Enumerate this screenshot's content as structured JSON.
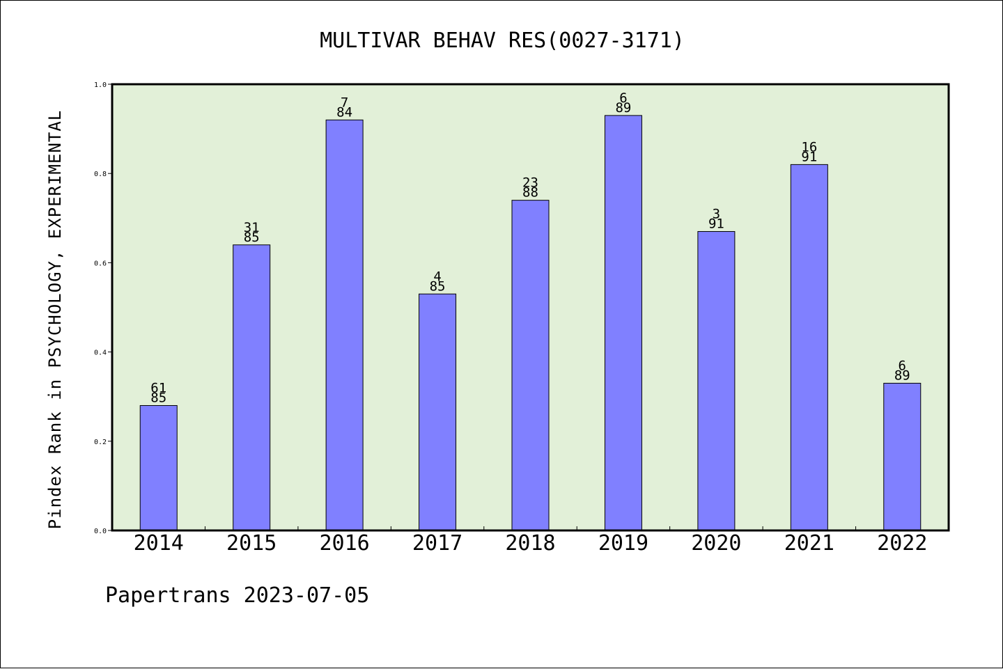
{
  "chart_data": {
    "type": "bar",
    "title": "MULTIVAR BEHAV RES(0027-3171)",
    "xlabel": "",
    "ylabel": "Pindex Rank in PSYCHOLOGY, EXPERIMENTAL",
    "ylim": [
      0,
      1.0
    ],
    "y_ticks": [
      "0.0",
      "0.2",
      "0.4",
      "0.6",
      "0.8",
      "1.0"
    ],
    "grid": false,
    "categories": [
      "2014",
      "2015",
      "2016",
      "2017",
      "2018",
      "2019",
      "2020",
      "2021",
      "2022"
    ],
    "values": [
      0.28,
      0.64,
      0.92,
      0.53,
      0.74,
      0.93,
      0.67,
      0.82,
      0.33
    ],
    "labels_top": [
      "61",
      "31",
      "7",
      "4",
      "23",
      "6",
      "3",
      "16",
      "6"
    ],
    "labels_bottom": [
      "85",
      "85",
      "84",
      "85",
      "88",
      "89",
      "91",
      "91",
      "89"
    ],
    "colors": {
      "plot_bg": "#e2f0d8",
      "bar_fill": "#8080ff",
      "bar_stroke": "#000000"
    }
  },
  "footer": "Papertrans 2023-07-05"
}
